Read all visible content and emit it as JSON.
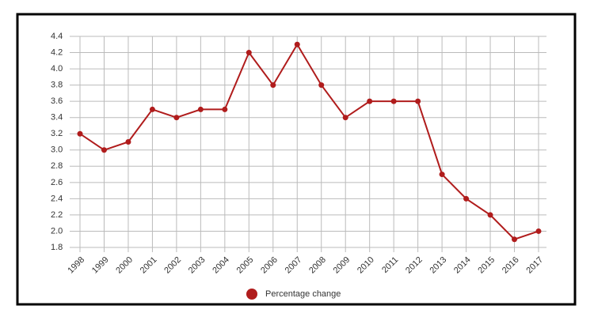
{
  "chart_data": {
    "type": "line",
    "categories": [
      "1998",
      "1999",
      "2000",
      "2001",
      "2002",
      "2003",
      "2004",
      "2005",
      "2006",
      "2007",
      "2008",
      "2009",
      "2010",
      "2011",
      "2012",
      "2013",
      "2014",
      "2015",
      "2016",
      "2017"
    ],
    "series": [
      {
        "name": "Percentage change",
        "color": "#b01c1c",
        "values": [
          3.2,
          3.0,
          3.1,
          3.5,
          3.4,
          3.5,
          3.5,
          4.2,
          3.8,
          4.3,
          3.8,
          3.4,
          3.6,
          3.6,
          3.6,
          2.7,
          2.4,
          2.2,
          1.9,
          2.0
        ]
      }
    ],
    "ylim": [
      1.8,
      4.4
    ],
    "yticks": [
      1.8,
      {
        "value": 2,
        "label": "2.0"
      },
      2.2,
      2.4,
      2.6,
      2.8,
      {
        "value": 3,
        "label": "3.0"
      },
      3.2,
      3.4,
      3.6,
      3.8,
      {
        "value": 4,
        "label": "4.0"
      },
      4.2,
      4.4
    ],
    "grid": true
  }
}
